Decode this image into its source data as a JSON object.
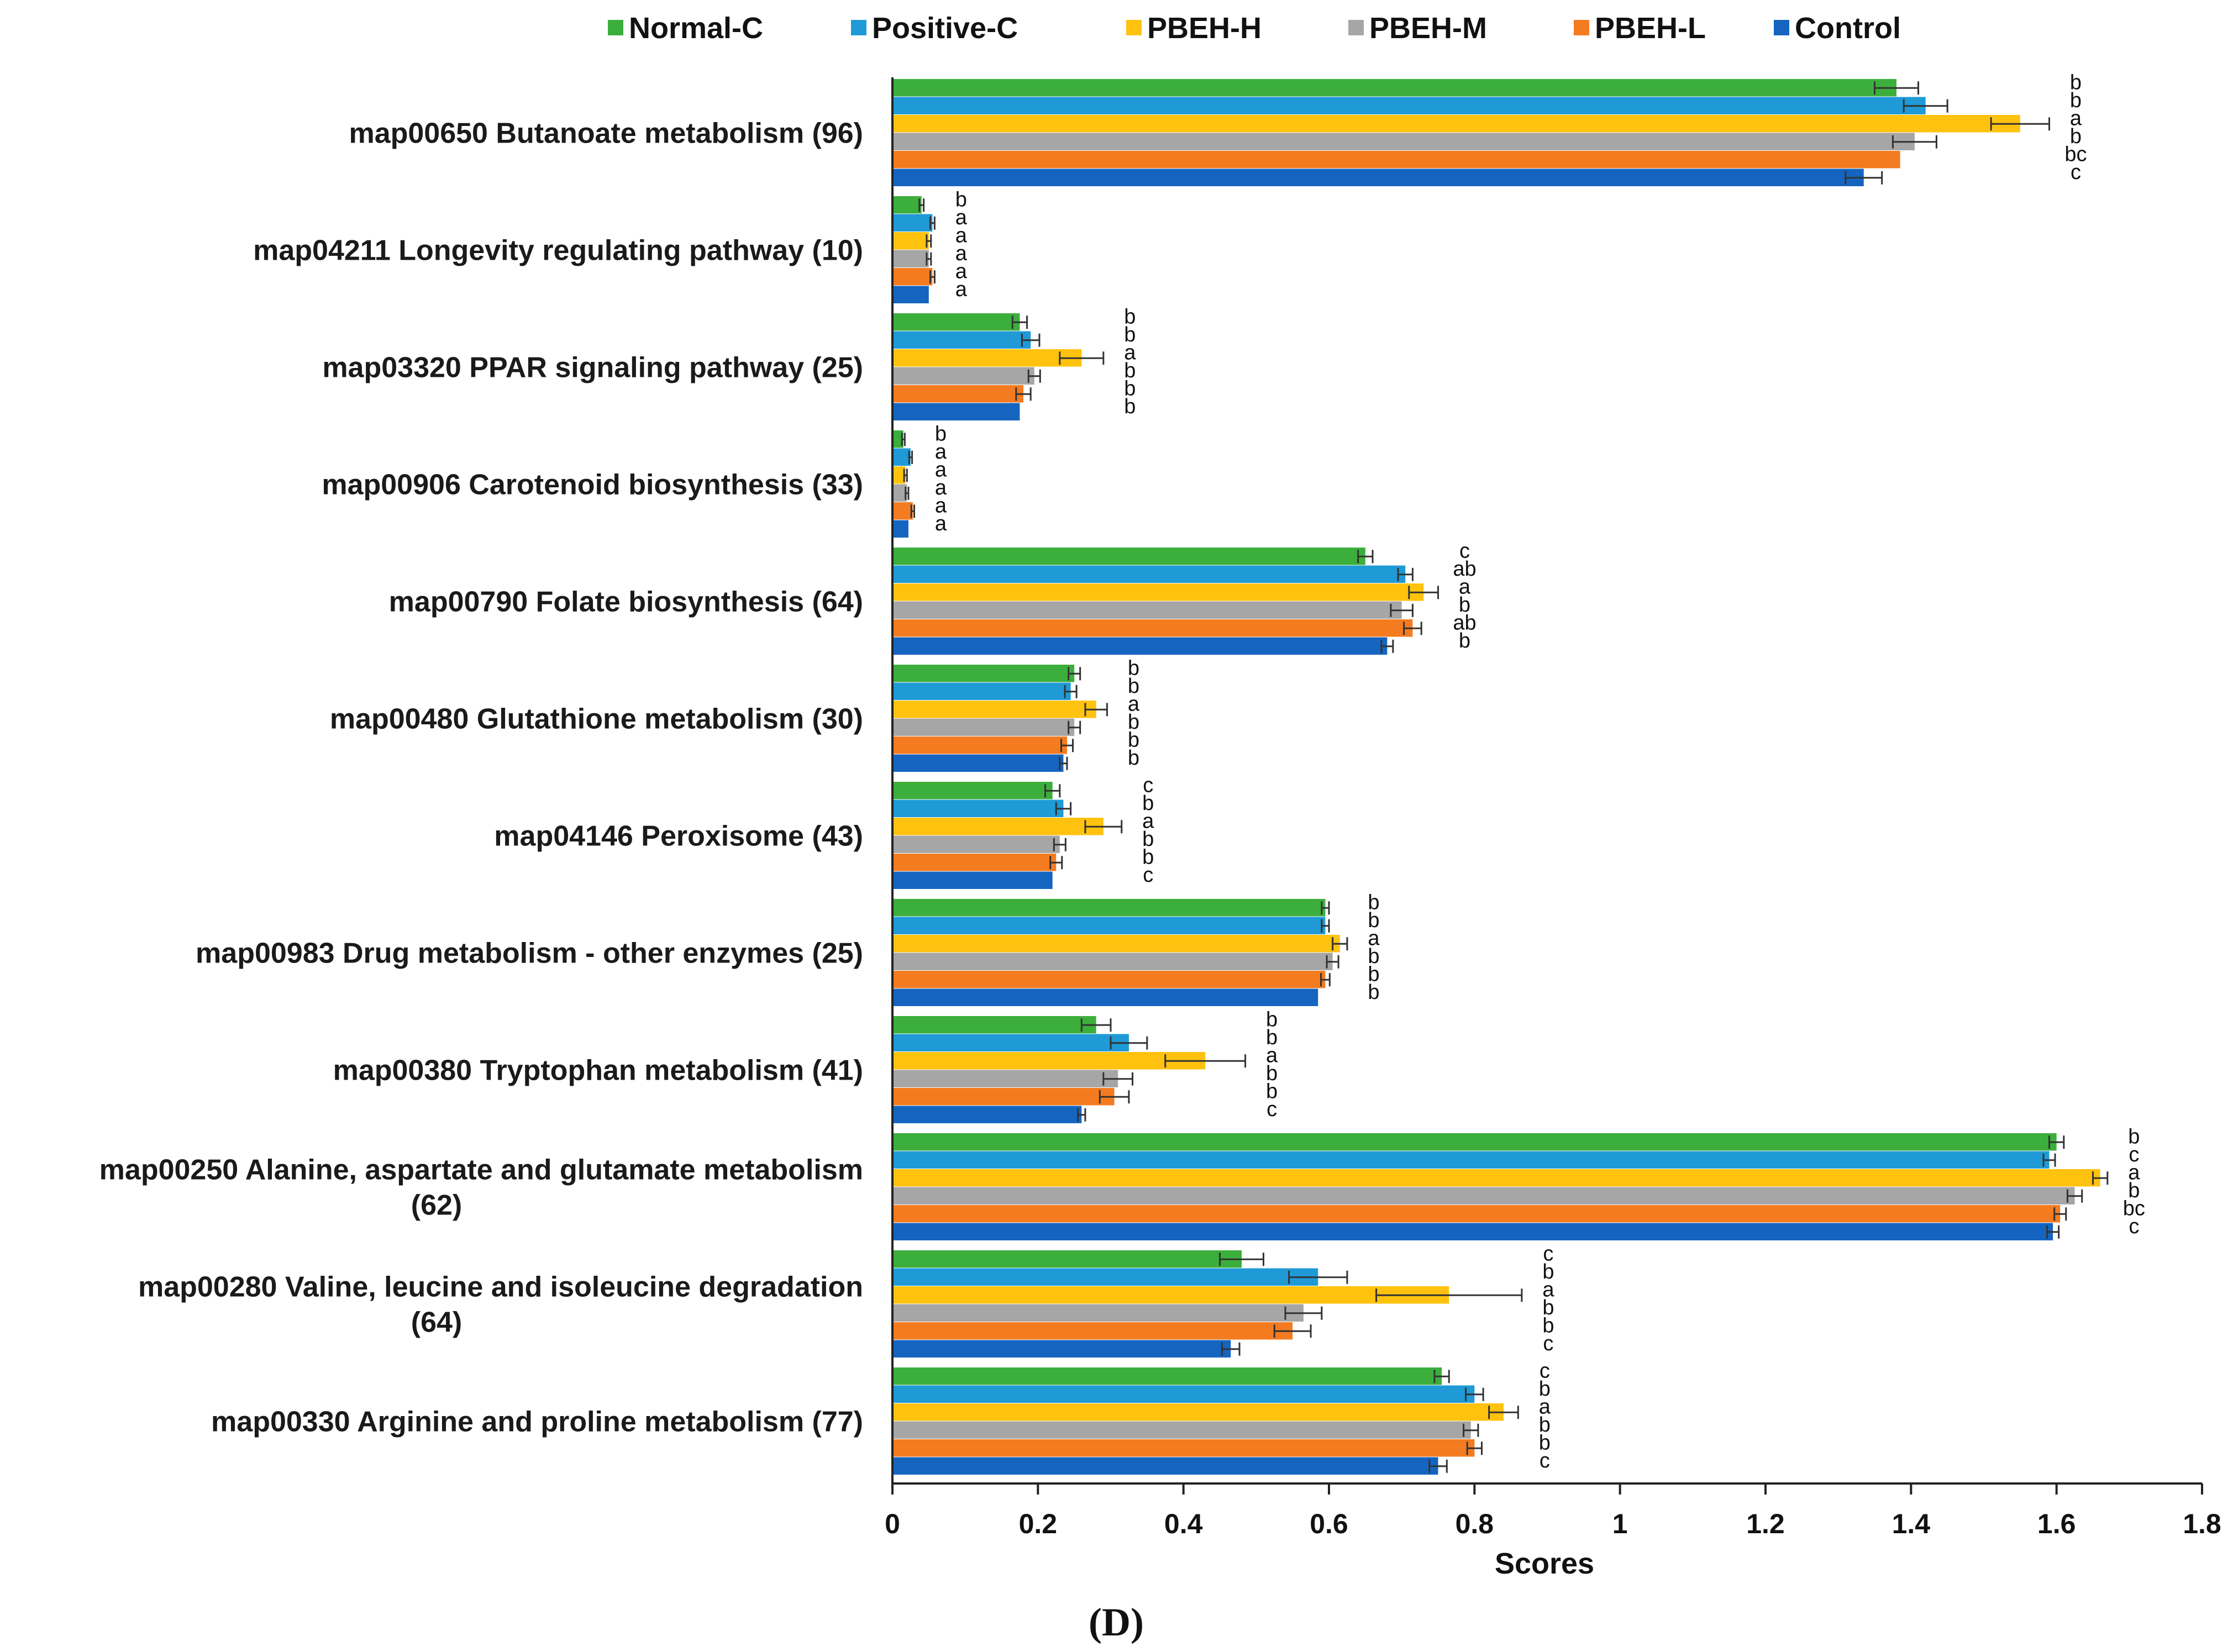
{
  "chart_data": {
    "type": "bar",
    "orientation": "horizontal",
    "title": "",
    "xlabel": "Scores",
    "ylabel": "",
    "xlim": [
      0,
      1.8
    ],
    "xticks": [
      "0",
      "0.2",
      "0.4",
      "0.6",
      "0.8",
      "1",
      "1.2",
      "1.4",
      "1.6",
      "1.8"
    ],
    "xtick_values": [
      0,
      0.2,
      0.4,
      0.6,
      0.8,
      1.0,
      1.2,
      1.4,
      1.6,
      1.8
    ],
    "grid": false,
    "legend_position": "top",
    "panel_label": "(D)",
    "categories": [
      "map00650 Butanoate metabolism (96)",
      "map04211 Longevity regulating pathway (10)",
      "map03320 PPAR signaling pathway (25)",
      "map00906 Carotenoid biosynthesis (33)",
      "map00790 Folate biosynthesis (64)",
      "map00480 Glutathione metabolism (30)",
      "map04146 Peroxisome (43)",
      "map00983 Drug metabolism - other enzymes (25)",
      "map00380 Tryptophan metabolism (41)",
      "map00250 Alanine, aspartate and glutamate metabolism (62)",
      "map00280 Valine, leucine and isoleucine degradation (64)",
      "map00330 Arginine and proline metabolism (77)"
    ],
    "category_lines": [
      [
        "map00650 Butanoate metabolism (96)"
      ],
      [
        "map04211 Longevity regulating pathway (10)"
      ],
      [
        "map03320 PPAR signaling pathway (25)"
      ],
      [
        "map00906 Carotenoid biosynthesis (33)"
      ],
      [
        "map00790 Folate biosynthesis (64)"
      ],
      [
        "map00480 Glutathione metabolism (30)"
      ],
      [
        "map04146 Peroxisome (43)"
      ],
      [
        "map00983 Drug metabolism - other enzymes (25)"
      ],
      [
        "map00380 Tryptophan metabolism (41)"
      ],
      [
        "map00250 Alanine, aspartate and glutamate metabolism",
        "(62)"
      ],
      [
        "map00280 Valine, leucine and isoleucine degradation",
        "(64)"
      ],
      [
        "map00330 Arginine and proline metabolism (77)"
      ]
    ],
    "series": [
      {
        "name": "Normal-C",
        "color": "#3cae3c",
        "values": [
          1.38,
          0.04,
          0.175,
          0.015,
          0.65,
          0.25,
          0.22,
          0.595,
          0.28,
          1.6,
          0.48,
          0.755
        ],
        "errors": [
          0.03,
          0.003,
          0.01,
          0.002,
          0.01,
          0.008,
          0.01,
          0.005,
          0.02,
          0.01,
          0.03,
          0.01
        ],
        "labels": [
          "b",
          "b",
          "b",
          "b",
          "c",
          "b",
          "c",
          "b",
          "b",
          "b",
          "c",
          "c"
        ]
      },
      {
        "name": "Positive-C",
        "color": "#1f9ad6",
        "values": [
          1.42,
          0.055,
          0.19,
          0.025,
          0.705,
          0.245,
          0.235,
          0.595,
          0.325,
          1.59,
          0.585,
          0.8
        ],
        "errors": [
          0.03,
          0.003,
          0.012,
          0.002,
          0.01,
          0.008,
          0.01,
          0.005,
          0.025,
          0.008,
          0.04,
          0.012
        ],
        "labels": [
          "b",
          "a",
          "b",
          "a",
          "ab",
          "b",
          "b",
          "b",
          "b",
          "c",
          "b",
          "b"
        ]
      },
      {
        "name": "PBEH-H",
        "color": "#ffc20e",
        "values": [
          1.55,
          0.05,
          0.26,
          0.018,
          0.73,
          0.28,
          0.29,
          0.615,
          0.43,
          1.66,
          0.765,
          0.84
        ],
        "errors": [
          0.04,
          0.003,
          0.03,
          0.002,
          0.02,
          0.015,
          0.025,
          0.01,
          0.055,
          0.01,
          0.1,
          0.02
        ],
        "labels": [
          "a",
          "a",
          "a",
          "a",
          "a",
          "a",
          "a",
          "a",
          "a",
          "a",
          "a",
          "a"
        ]
      },
      {
        "name": "PBEH-M",
        "color": "#a6a6a6",
        "values": [
          1.405,
          0.05,
          0.195,
          0.02,
          0.7,
          0.25,
          0.23,
          0.605,
          0.31,
          1.625,
          0.565,
          0.795
        ],
        "errors": [
          0.03,
          0.003,
          0.008,
          0.002,
          0.015,
          0.008,
          0.008,
          0.008,
          0.02,
          0.01,
          0.025,
          0.01
        ],
        "labels": [
          "b",
          "a",
          "b",
          "a",
          "b",
          "b",
          "b",
          "b",
          "b",
          "b",
          "b",
          "b"
        ]
      },
      {
        "name": "PBEH-L",
        "color": "#f47b20",
        "values": [
          1.385,
          0.055,
          0.18,
          0.028,
          0.715,
          0.24,
          0.225,
          0.595,
          0.305,
          1.605,
          0.55,
          0.8
        ],
        "errors": [
          0.0,
          0.003,
          0.01,
          0.002,
          0.012,
          0.008,
          0.008,
          0.006,
          0.02,
          0.008,
          0.025,
          0.01
        ],
        "labels": [
          "bc",
          "a",
          "b",
          "a",
          "ab",
          "b",
          "b",
          "b",
          "b",
          "bc",
          "b",
          "b"
        ]
      },
      {
        "name": "Control",
        "color": "#1565c0",
        "values": [
          1.335,
          0.05,
          0.175,
          0.022,
          0.68,
          0.235,
          0.22,
          0.585,
          0.26,
          1.595,
          0.465,
          0.75
        ],
        "errors": [
          0.025,
          0.0,
          0.0,
          0.0,
          0.008,
          0.005,
          0.0,
          0.0,
          0.005,
          0.008,
          0.012,
          0.012
        ],
        "labels": [
          "c",
          "a",
          "b",
          "a",
          "b",
          "b",
          "c",
          "b",
          "c",
          "c",
          "c",
          "c"
        ]
      }
    ]
  }
}
